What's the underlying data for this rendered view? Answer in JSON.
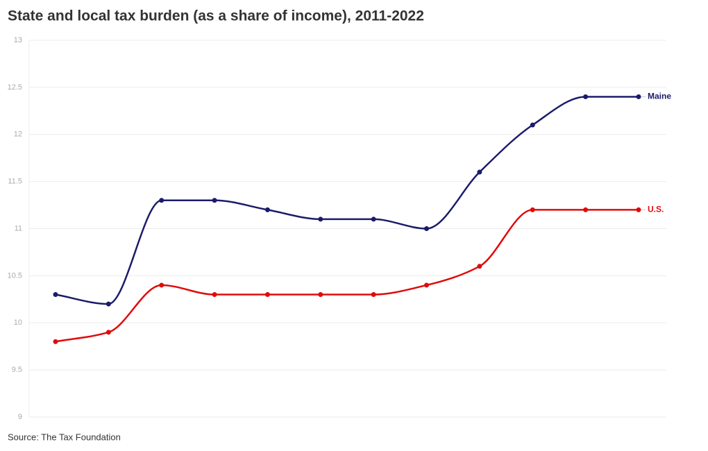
{
  "chart_data": {
    "type": "line",
    "title": "State and local tax burden (as a share of income), 2011-2022",
    "source": "Source: The Tax Foundation",
    "categories": [
      null,
      null,
      null,
      null,
      null,
      null,
      null,
      null,
      null,
      null,
      null,
      null
    ],
    "series": [
      {
        "name": "Maine",
        "color": "#1b1b6b",
        "values": [
          10.3,
          10.2,
          11.3,
          11.3,
          11.2,
          11.1,
          11.1,
          11.0,
          11.6,
          12.1,
          12.4,
          12.4
        ]
      },
      {
        "name": "U.S.",
        "color": "#e00b0b",
        "values": [
          9.8,
          9.9,
          10.4,
          10.3,
          10.3,
          10.3,
          10.3,
          10.4,
          10.6,
          11.2,
          11.2,
          11.2
        ]
      }
    ],
    "ylim": [
      9,
      13
    ],
    "yticks": [
      9,
      9.5,
      10,
      10.5,
      11,
      11.5,
      12,
      12.5,
      13
    ],
    "grid": true
  }
}
